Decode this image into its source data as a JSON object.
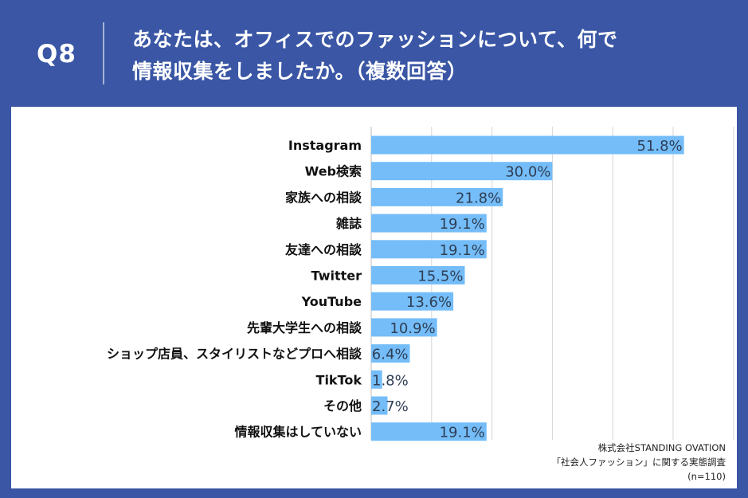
{
  "header": {
    "question_number": "Q8",
    "title_line1": "あなたは、オフィスでのファッションについて、何で",
    "title_line2": "情報収集をしましたか。（複数回答）"
  },
  "colors": {
    "background": "#3a56a5",
    "bar": "#74bdf8",
    "value_text": "#2f3e55",
    "grid": "#d5d5d5"
  },
  "chart_data": {
    "type": "bar",
    "orientation": "horizontal",
    "categories": [
      "Instagram",
      "Web検索",
      "家族への相談",
      "雑誌",
      "友達への相談",
      "Twitter",
      "YouTube",
      "先輩大学生への相談",
      "ショップ店員、スタイリストなどプロへ相談",
      "TikTok",
      "その他",
      "情報収集はしていない"
    ],
    "values": [
      51.8,
      30.0,
      21.8,
      19.1,
      19.1,
      15.5,
      13.6,
      10.9,
      6.4,
      1.8,
      2.7,
      19.1
    ],
    "value_labels": [
      "51.8%",
      "30.0%",
      "21.8%",
      "19.1%",
      "19.1%",
      "15.5%",
      "13.6%",
      "10.9%",
      "6.4%",
      "1.8%",
      "2.7%",
      "19.1%"
    ],
    "xlim": [
      0,
      60
    ],
    "grid": true,
    "legend": "none"
  },
  "footer": {
    "company": "株式会社STANDING OVATION",
    "survey": "「社会人ファッション」に関する実態調査",
    "sample": "(n=110)"
  }
}
